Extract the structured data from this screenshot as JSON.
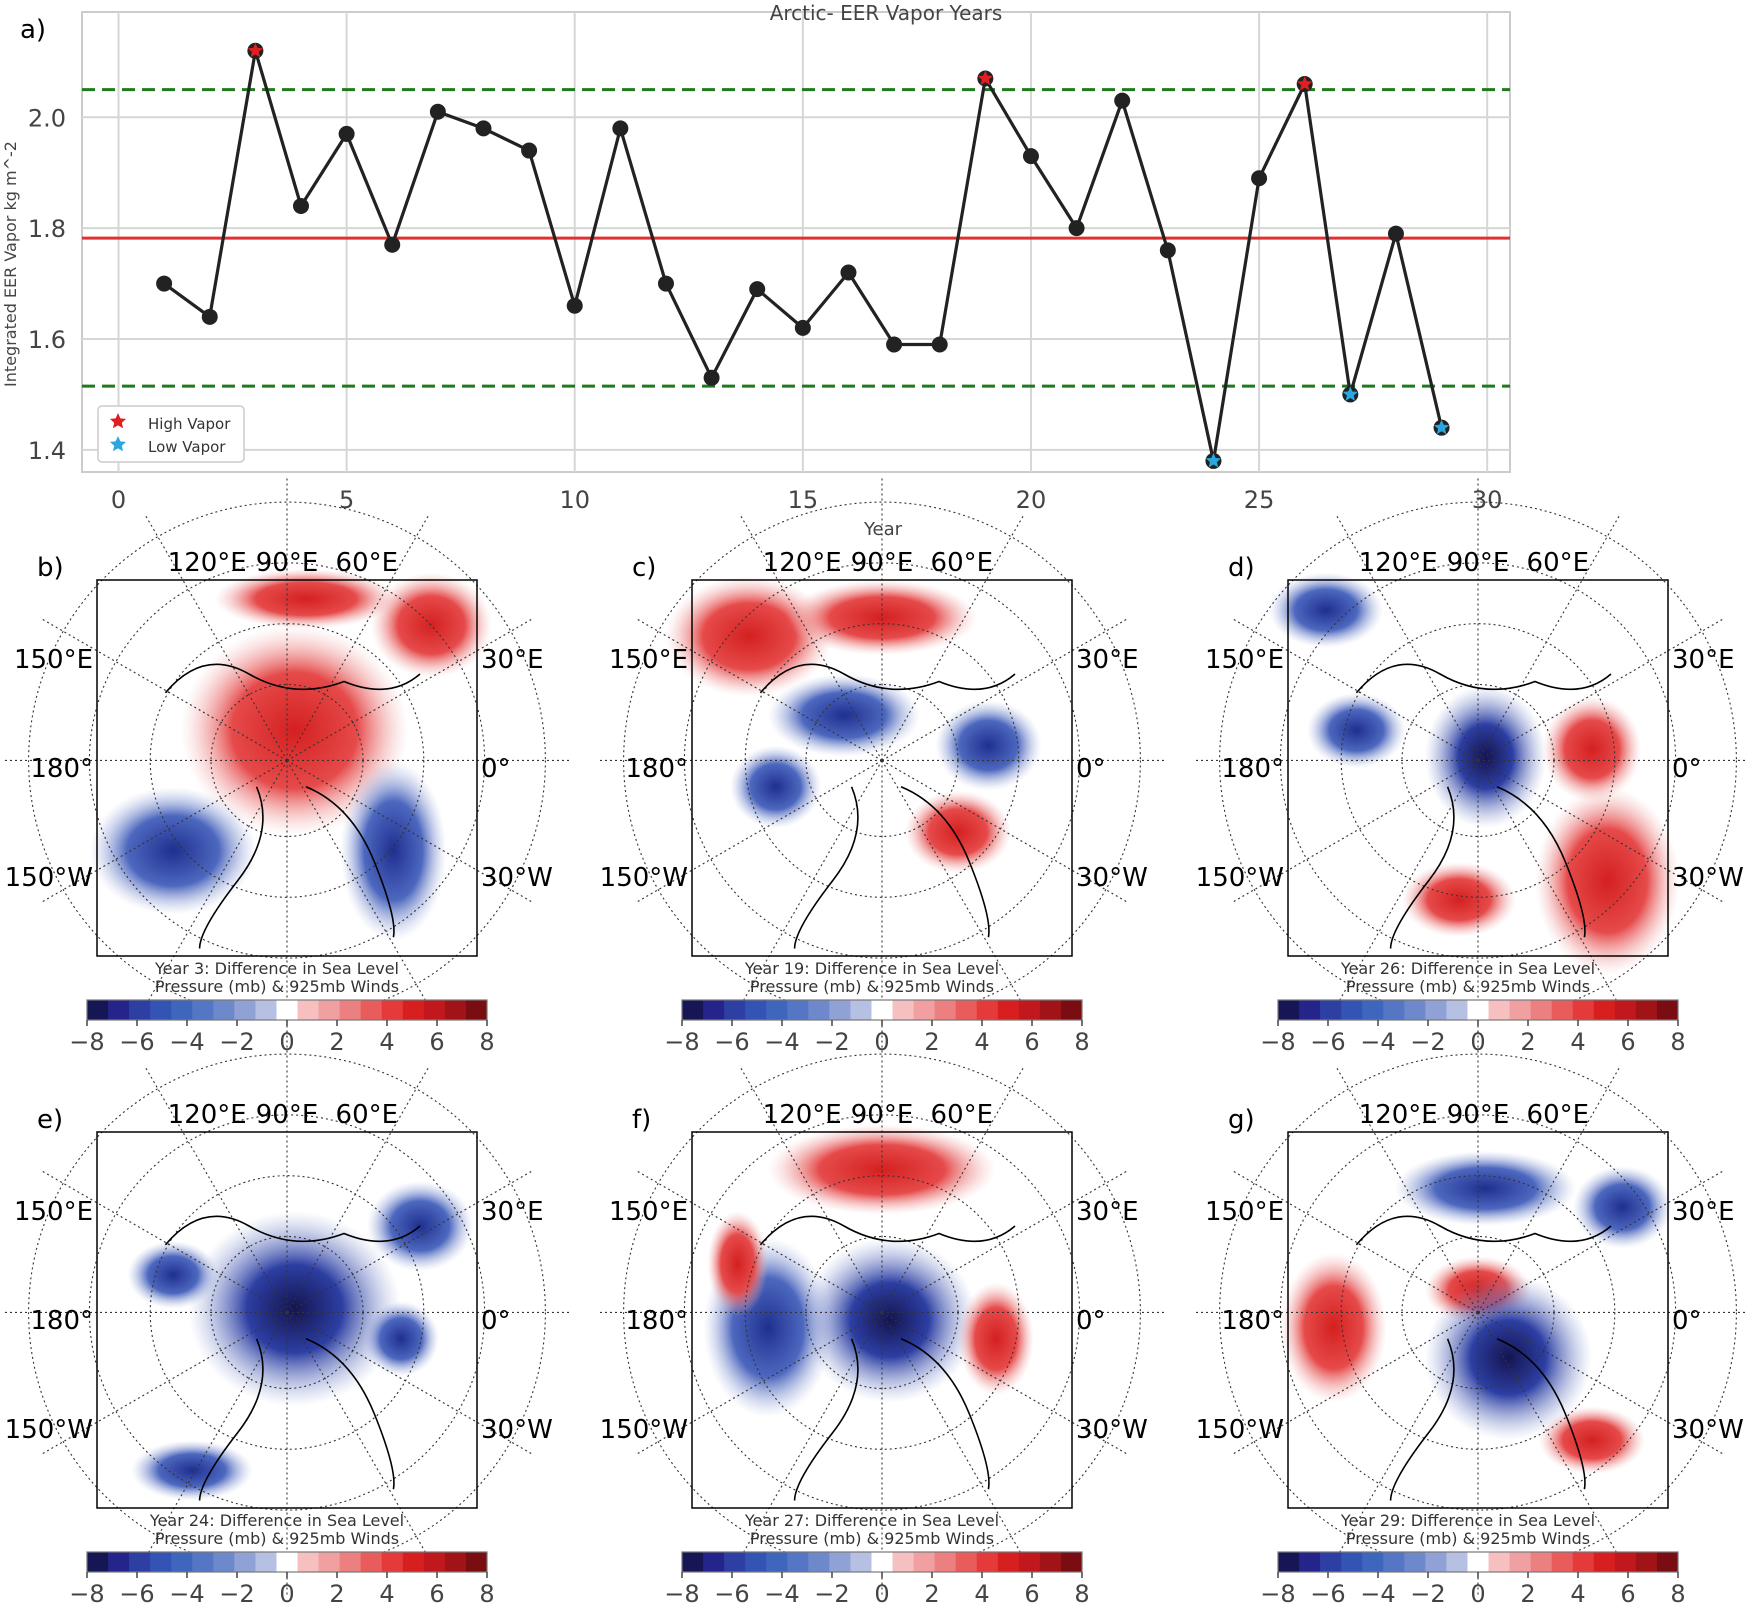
{
  "chart_data": [
    {
      "type": "line",
      "panel_label": "a)",
      "title": "Arctic- EER Vapor Years",
      "xlabel": "Year",
      "ylabel": "Integrated EER Vapor  kg m^-2",
      "xlim": [
        -0.8,
        30.5
      ],
      "ylim": [
        1.36,
        2.19
      ],
      "xticks": [
        0,
        5,
        10,
        15,
        20,
        25,
        30
      ],
      "yticks": [
        1.4,
        1.6,
        1.8,
        2.0
      ],
      "grid": true,
      "legend_position": "lower-left",
      "series": [
        {
          "x": [
            1,
            2,
            3,
            4,
            5,
            6,
            7,
            8,
            9,
            10,
            11,
            12,
            13,
            14,
            15,
            16,
            17,
            18,
            19,
            20,
            21,
            22,
            23,
            24,
            25,
            26,
            27,
            28,
            29
          ],
          "y": [
            1.7,
            1.64,
            2.12,
            1.84,
            1.97,
            1.77,
            2.01,
            1.98,
            1.94,
            1.66,
            1.98,
            1.7,
            1.53,
            1.69,
            1.62,
            1.72,
            1.59,
            1.59,
            2.07,
            1.93,
            1.8,
            2.03,
            1.76,
            1.38,
            1.89,
            2.06,
            1.5,
            1.79,
            1.44
          ],
          "color": "#222222"
        }
      ],
      "reference_lines": [
        {
          "y": 1.782,
          "style": "solid",
          "color": "#e03030"
        },
        {
          "y": 2.05,
          "style": "dashed",
          "color": "#1f7a1f"
        },
        {
          "y": 1.515,
          "style": "dashed",
          "color": "#1f7a1f"
        }
      ],
      "markers": [
        {
          "name": "High Vapor",
          "color": "#e02020",
          "years": [
            3,
            19,
            26
          ]
        },
        {
          "name": "Low Vapor",
          "color": "#29a8e0",
          "years": [
            24,
            27,
            29
          ]
        }
      ]
    },
    {
      "type": "heatmap",
      "panels": [
        {
          "label": "b)",
          "caption1": "Year 3: Difference in Sea Level",
          "caption2": "Pressure (mb) & 925mb Winds"
        },
        {
          "label": "c)",
          "caption1": "Year 19: Difference in Sea Level",
          "caption2": "Pressure (mb) & 925mb Winds"
        },
        {
          "label": "d)",
          "caption1": "Year 26: Difference in Sea Level",
          "caption2": "Pressure (mb) & 925mb Winds"
        },
        {
          "label": "e)",
          "caption1": "Year 24: Difference in Sea Level",
          "caption2": "Pressure (mb) & 925mb Winds"
        },
        {
          "label": "f)",
          "caption1": "Year 27: Difference in Sea Level",
          "caption2": "Pressure (mb) & 925mb Winds"
        },
        {
          "label": "g)",
          "caption1": "Year 29: Difference in Sea Level",
          "caption2": "Pressure (mb) & 925mb Winds"
        }
      ],
      "map_labels": {
        "top": [
          "120°E",
          "90°E",
          "60°E"
        ],
        "left": [
          "150°E",
          "180°",
          "150°W"
        ],
        "right": [
          "30°E",
          "0°",
          "30°W"
        ]
      },
      "colorbar": {
        "ticks": [
          "−8",
          "−6",
          "−4",
          "−2",
          "0",
          "2",
          "4",
          "6",
          "8"
        ],
        "colors": [
          "#161655",
          "#24248a",
          "#2d3fa3",
          "#3454b5",
          "#3f66bd",
          "#5476c4",
          "#6e89cb",
          "#90a1d6",
          "#b5c0e3",
          "#ffffff",
          "#f6c0c0",
          "#f0a0a0",
          "#ec8080",
          "#e85c5c",
          "#e43a3a",
          "#d81f1f",
          "#c0181c",
          "#a01418",
          "#7a0d12"
        ]
      }
    }
  ]
}
